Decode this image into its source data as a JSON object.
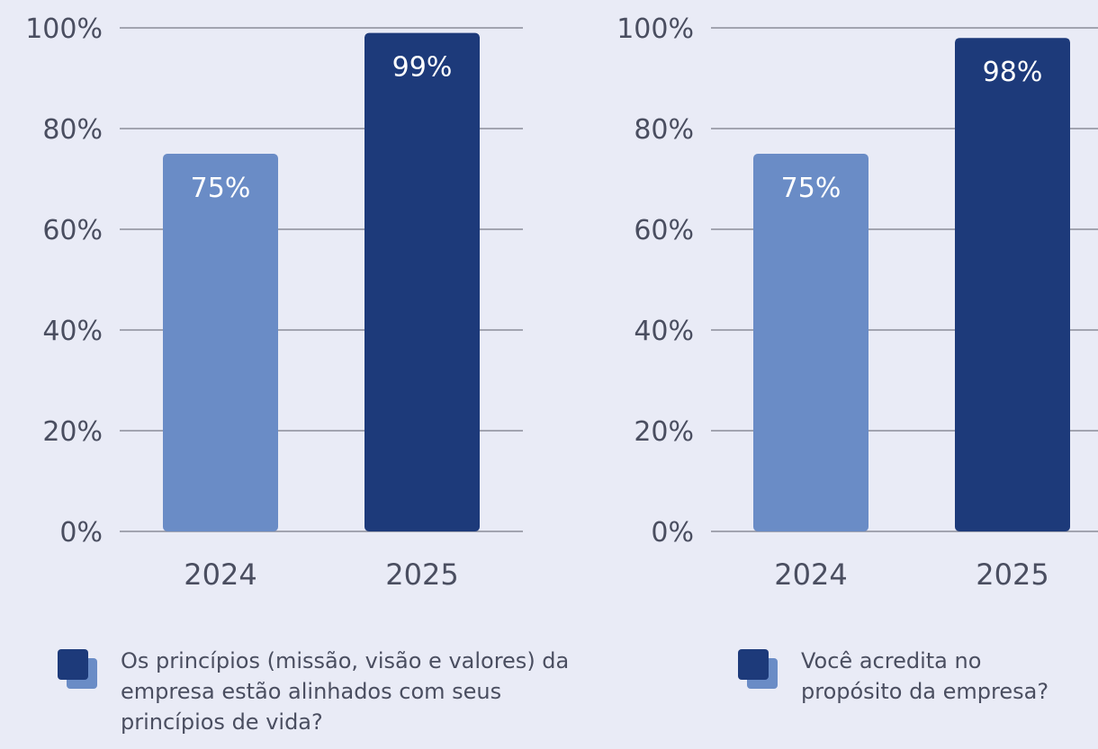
{
  "colors": {
    "light_bar": "#6a8cc6",
    "dark_bar": "#1d3a7a",
    "background": "#e9ebf6",
    "gridline": "#8a8d99",
    "axis_text": "#4a4e60"
  },
  "chart_data": [
    {
      "type": "bar",
      "categories": [
        "2024",
        "2025"
      ],
      "values": [
        75,
        99
      ],
      "value_labels": [
        "75%",
        "99%"
      ],
      "y_ticks": [
        "0%",
        "20%",
        "40%",
        "60%",
        "80%",
        "100%"
      ],
      "ylim": [
        0,
        100
      ],
      "grid": true,
      "legend_text": "Os princípios (missão, visão e valores) da empresa estão alinhados com seus princípios de vida?"
    },
    {
      "type": "bar",
      "categories": [
        "2024",
        "2025"
      ],
      "values": [
        75,
        98
      ],
      "value_labels": [
        "75%",
        "98%"
      ],
      "y_ticks": [
        "0%",
        "20%",
        "40%",
        "60%",
        "80%",
        "100%"
      ],
      "ylim": [
        0,
        100
      ],
      "grid": true,
      "legend_text": "Você acredita no propósito da empresa?"
    }
  ]
}
